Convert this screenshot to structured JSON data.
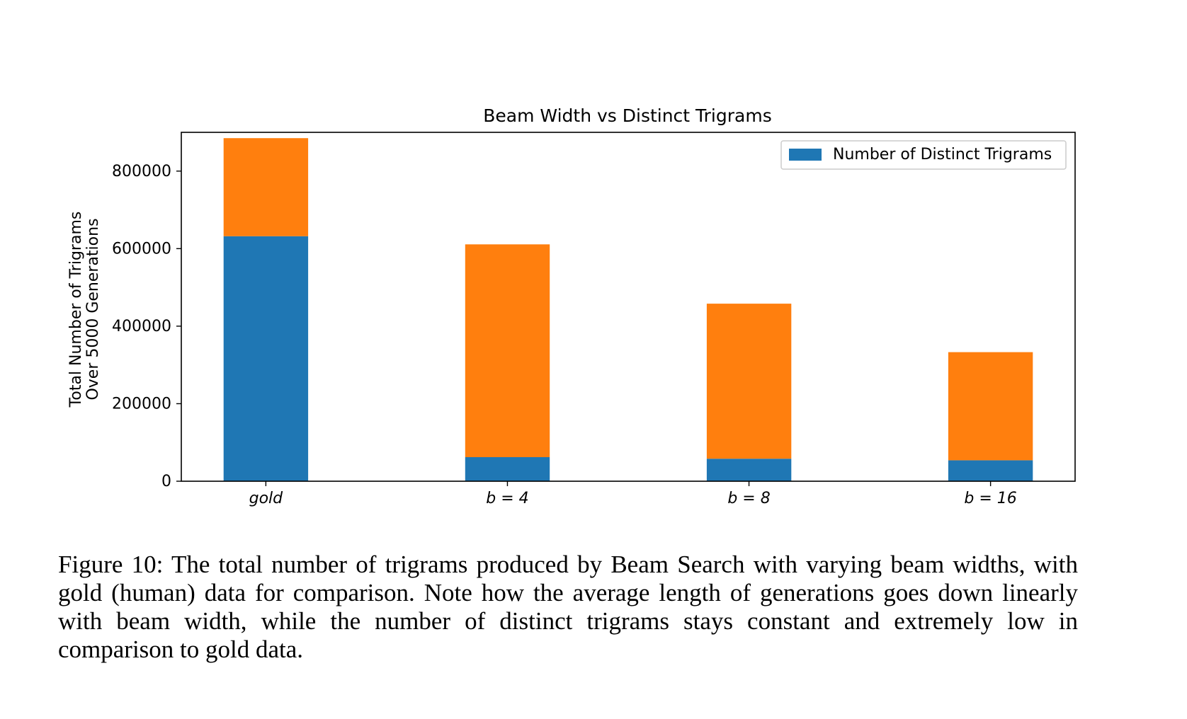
{
  "chart_data": {
    "type": "bar",
    "stacked": true,
    "title": "Beam Width vs Distinct Trigrams",
    "ylabel_lines": [
      "Total Number of Trigrams",
      "Over 5000 Generations"
    ],
    "xlabel": "",
    "categories": [
      "gold",
      "b = 4",
      "b = 8",
      "b = 16"
    ],
    "series": [
      {
        "name": "Number of Distinct Trigrams",
        "color": "#1f77b4",
        "values": [
          632000,
          62000,
          58000,
          54000
        ]
      },
      {
        "color": "#ff7f0e",
        "values": [
          253000,
          549000,
          400000,
          279000
        ]
      }
    ],
    "ylim": [
      0,
      900000
    ],
    "yticks": [
      0,
      200000,
      400000,
      600000,
      800000
    ],
    "legend_position": "top-right",
    "grid": false
  },
  "caption": "Figure 10:  The total number of trigrams produced by Beam Search with varying beam widths, with gold (human) data for comparison.  Note how the average length of generations goes down linearly with beam width, while the number of distinct trigrams stays constant and extremely low in comparison to gold data."
}
